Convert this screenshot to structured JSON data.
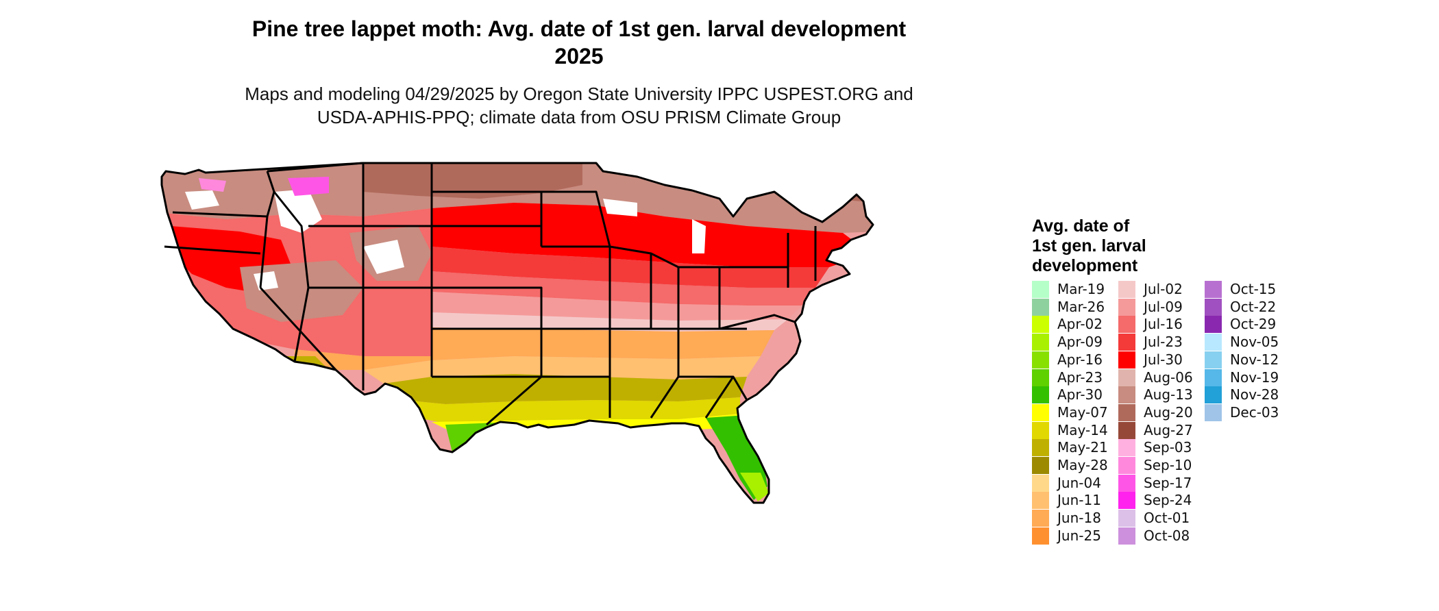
{
  "title_line1": "Pine tree lappet moth: Avg. date of 1st gen. larval development",
  "title_line2": "2025",
  "subtitle_line1": "Maps and modeling 04/29/2025 by Oregon State University IPPC USPEST.ORG and",
  "subtitle_line2": "USDA-APHIS-PPQ; climate data from OSU PRISM Climate Group",
  "legend": {
    "title_line1": "Avg. date of",
    "title_line2": "1st gen. larval",
    "title_line3": "development",
    "items": [
      {
        "label": "Mar-19",
        "color": "#b5ffc8"
      },
      {
        "label": "Mar-26",
        "color": "#8fd19e"
      },
      {
        "label": "Apr-02",
        "color": "#ccff00"
      },
      {
        "label": "Apr-09",
        "color": "#a8f000"
      },
      {
        "label": "Apr-16",
        "color": "#88e000"
      },
      {
        "label": "Apr-23",
        "color": "#5fd000"
      },
      {
        "label": "Apr-30",
        "color": "#33c000"
      },
      {
        "label": "May-07",
        "color": "#ffff00"
      },
      {
        "label": "May-14",
        "color": "#e0d800"
      },
      {
        "label": "May-21",
        "color": "#bfb000"
      },
      {
        "label": "May-28",
        "color": "#9c8a00"
      },
      {
        "label": "Jun-04",
        "color": "#ffd88a"
      },
      {
        "label": "Jun-11",
        "color": "#ffc070"
      },
      {
        "label": "Jun-18",
        "color": "#ffaa55"
      },
      {
        "label": "Jun-25",
        "color": "#ff9030"
      },
      {
        "label": "Jul-02",
        "color": "#f5c8c8"
      },
      {
        "label": "Jul-09",
        "color": "#f59a9a"
      },
      {
        "label": "Jul-16",
        "color": "#f56a6a"
      },
      {
        "label": "Jul-23",
        "color": "#f53a3a"
      },
      {
        "label": "Jul-30",
        "color": "#ff0000"
      },
      {
        "label": "Aug-06",
        "color": "#e0b4ac"
      },
      {
        "label": "Aug-13",
        "color": "#c88c80"
      },
      {
        "label": "Aug-20",
        "color": "#b06a5c"
      },
      {
        "label": "Aug-27",
        "color": "#964838"
      },
      {
        "label": "Sep-03",
        "color": "#ffb0e0"
      },
      {
        "label": "Sep-10",
        "color": "#ff88dd"
      },
      {
        "label": "Sep-17",
        "color": "#ff55e6"
      },
      {
        "label": "Sep-24",
        "color": "#ff22ee"
      },
      {
        "label": "Oct-01",
        "color": "#dcc0e8"
      },
      {
        "label": "Oct-08",
        "color": "#cc90dd"
      },
      {
        "label": "Oct-15",
        "color": "#b870d0"
      },
      {
        "label": "Oct-22",
        "color": "#a050c0"
      },
      {
        "label": "Oct-29",
        "color": "#8a28b0"
      },
      {
        "label": "Nov-05",
        "color": "#b8e8ff"
      },
      {
        "label": "Nov-12",
        "color": "#88d0f0"
      },
      {
        "label": "Nov-19",
        "color": "#55b8e8"
      },
      {
        "label": "Nov-28",
        "color": "#22a0d8"
      },
      {
        "label": "Dec-03",
        "color": "#a0c4e8"
      }
    ]
  },
  "map_colors": {
    "outline": "#000000",
    "nodata": "#ffffff"
  }
}
